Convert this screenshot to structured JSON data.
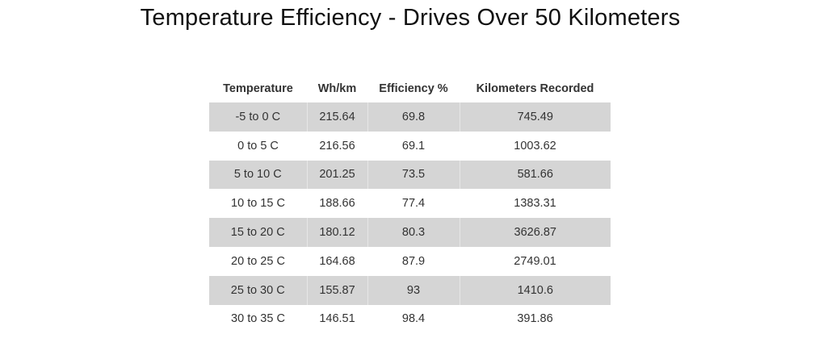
{
  "title": "Temperature Efficiency - Drives Over 50 Kilometers",
  "table": {
    "headers": [
      "Temperature",
      "Wh/km",
      "Efficiency %",
      "Kilometers Recorded"
    ],
    "rows": [
      [
        "-5 to 0 C",
        "215.64",
        "69.8",
        "745.49"
      ],
      [
        "0 to 5 C",
        "216.56",
        "69.1",
        "1003.62"
      ],
      [
        "5 to 10 C",
        "201.25",
        "73.5",
        "581.66"
      ],
      [
        "10 to 15 C",
        "188.66",
        "77.4",
        "1383.31"
      ],
      [
        "15 to 20 C",
        "180.12",
        "80.3",
        "3626.87"
      ],
      [
        "20 to 25 C",
        "164.68",
        "87.9",
        "2749.01"
      ],
      [
        "25 to 30 C",
        "155.87",
        "93",
        "1410.6"
      ],
      [
        "30 to 35 C",
        "146.51",
        "98.4",
        "391.86"
      ]
    ],
    "stripe_color": "#d5d5d5"
  }
}
